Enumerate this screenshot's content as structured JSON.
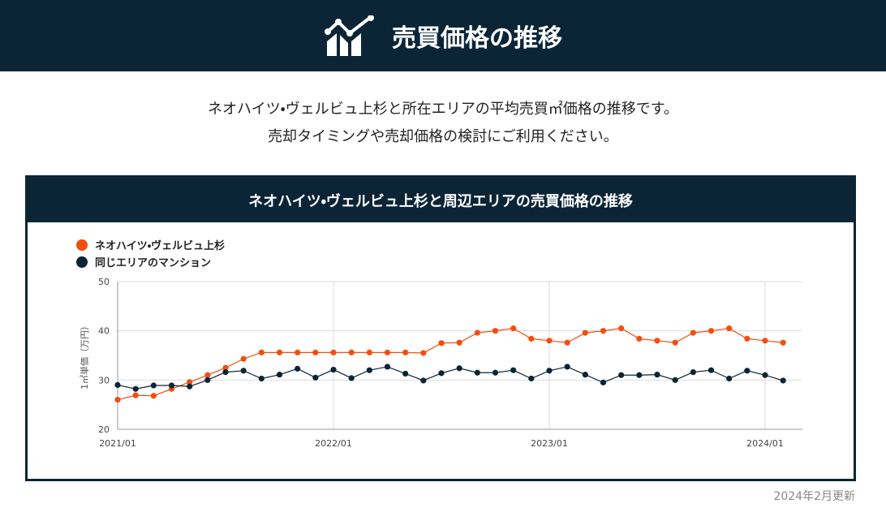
{
  "header": {
    "title": "売買価格の推移"
  },
  "intro": [
    "ネオハイツ・ヴェルビュ上杉と所在エリアの平均売買㎡価格の推移です。",
    "売却タイミングや売却価格の検討にご利用ください。"
  ],
  "chart_data": {
    "type": "line",
    "title": "ネオハイツ・ヴェルビュ上杉と周辺エリアの売買価格の推移",
    "y_label": "1㎡単価（万円）",
    "categories": [
      "2021/01",
      null,
      null,
      null,
      null,
      null,
      null,
      null,
      null,
      null,
      null,
      null,
      "2022/01",
      null,
      null,
      null,
      null,
      null,
      null,
      null,
      null,
      null,
      null,
      null,
      "2023/01",
      null,
      null,
      null,
      null,
      null,
      null,
      null,
      null,
      null,
      null,
      null,
      "2024/01",
      null
    ],
    "series": [
      {
        "name": "ネオハイツ・ヴェルビュ上杉",
        "color": "#f24e0f",
        "values": [
          26.0,
          26.9,
          26.8,
          28.2,
          29.6,
          31.0,
          32.5,
          34.3,
          35.6,
          35.6,
          35.6,
          35.6,
          35.6,
          35.6,
          35.6,
          35.6,
          35.6,
          35.5,
          37.5,
          37.6,
          39.6,
          40.0,
          40.5,
          38.4,
          38.0,
          37.6,
          39.6,
          40.0,
          40.5,
          38.4,
          38.0,
          37.6,
          39.6,
          40.0,
          40.5,
          38.4,
          38.0,
          37.6
        ]
      },
      {
        "name": "同じエリアのマンション",
        "color": "#0b2536",
        "values": [
          29.0,
          28.2,
          28.9,
          28.9,
          28.7,
          30.0,
          31.6,
          31.9,
          30.3,
          31.1,
          32.3,
          30.5,
          32.1,
          30.4,
          32.0,
          32.7,
          31.3,
          29.9,
          31.4,
          32.4,
          31.5,
          31.5,
          32.0,
          30.3,
          31.9,
          32.7,
          31.1,
          29.5,
          31.0,
          31.0,
          31.1,
          30.0,
          31.6,
          32.0,
          30.3,
          31.9,
          31.0,
          29.9
        ]
      }
    ],
    "ylim": [
      20,
      50
    ],
    "yticks": [
      20,
      30,
      40,
      50
    ],
    "grid": true,
    "legend": "top-left"
  },
  "footer": "2024年2月更新"
}
